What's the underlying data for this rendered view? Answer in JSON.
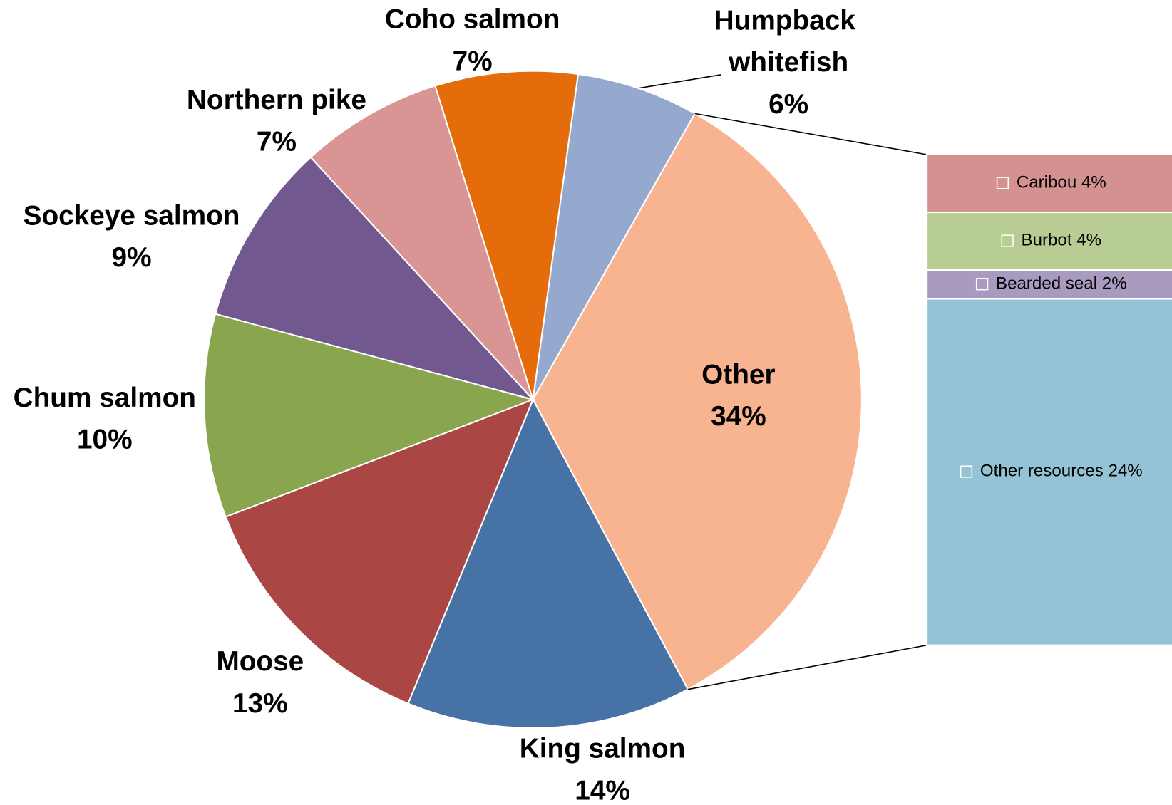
{
  "chart_data": {
    "type": "pie",
    "categories": [
      "Humpback whitefish",
      "Other",
      "King salmon",
      "Moose",
      "Chum salmon",
      "Sockeye salmon",
      "Northern pike",
      "Coho salmon"
    ],
    "values": [
      6,
      34,
      14,
      13,
      10,
      9,
      7,
      7
    ],
    "value_labels": [
      "6%",
      "34%",
      "14%",
      "13%",
      "10%",
      "9%",
      "7%",
      "7%"
    ],
    "colors": [
      "#95a9cf",
      "#f8b490",
      "#4672a6",
      "#aa4644",
      "#89a54e",
      "#71588f",
      "#d99594",
      "#e46c0a"
    ],
    "bar": {
      "categories": [
        "Caribou",
        "Burbot",
        "Bearded seal",
        "Other resources"
      ],
      "values": [
        4,
        4,
        2,
        24
      ],
      "value_labels": [
        "4%",
        "4%",
        "2%",
        "24%"
      ],
      "colors": [
        "#d39190",
        "#b8cd94",
        "#a99bc0",
        "#93c3d4"
      ]
    }
  }
}
